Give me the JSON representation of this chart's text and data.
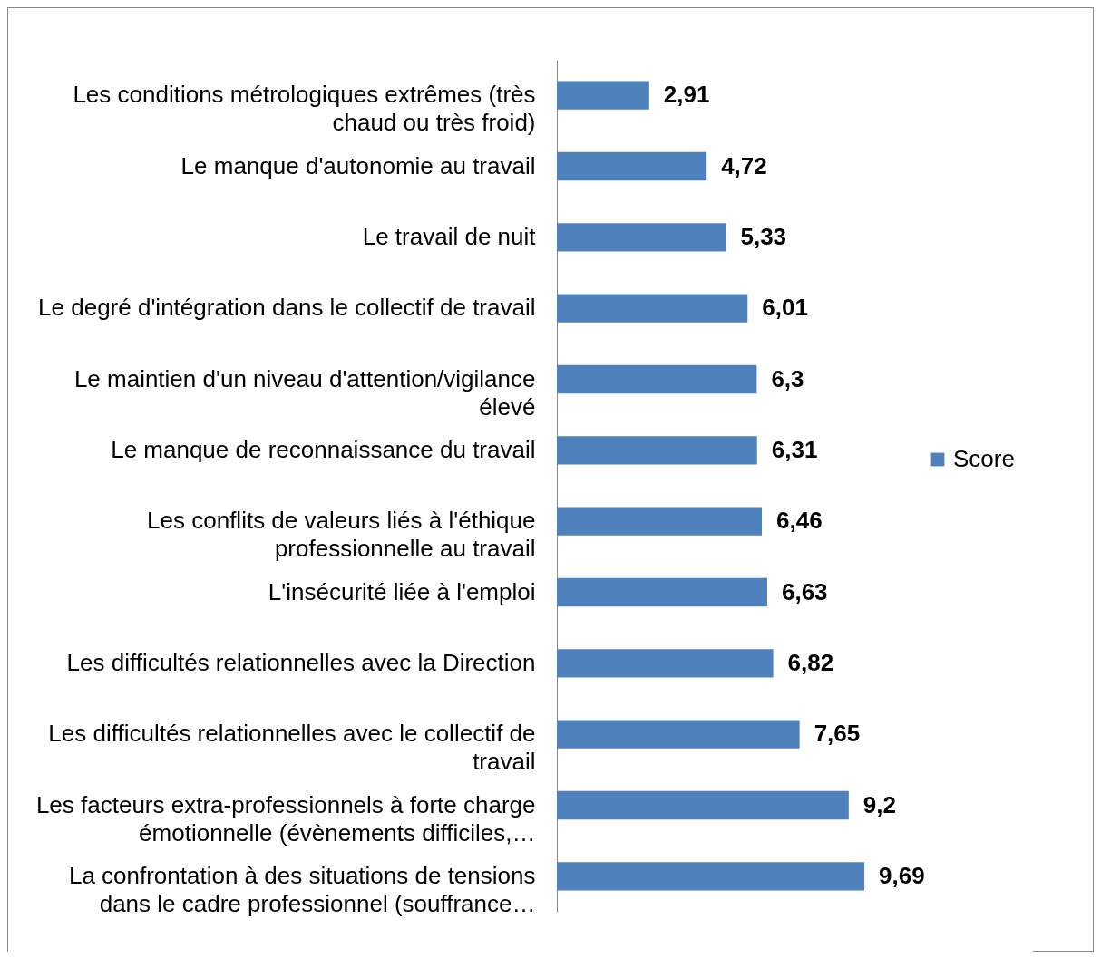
{
  "chart_data": {
    "type": "bar",
    "orientation": "horizontal",
    "categories": [
      "Les conditions métrologiques extrêmes (très chaud ou très froid)",
      "Le manque d'autonomie au travail",
      "Le travail de nuit",
      "Le degré d'intégration dans le collectif de travail",
      "Le maintien d'un niveau d'attention/vigilance élevé",
      "Le manque de reconnaissance du travail",
      "Les conflits de valeurs liés à l'éthique professionnelle au travail",
      "L'insécurité liée à l'emploi",
      "Les difficultés relationnelles avec la Direction",
      "Les difficultés relationnelles avec le collectif de travail",
      "Les facteurs extra-professionnels à forte charge émotionnelle (évènements difficiles,…",
      "La confrontation à des situations de tensions dans le cadre professionnel (souffrance…"
    ],
    "series": [
      {
        "name": "Score",
        "color": "#4f81bd",
        "values": [
          2.91,
          4.72,
          5.33,
          6.01,
          6.3,
          6.31,
          6.46,
          6.63,
          6.82,
          7.65,
          9.2,
          9.69
        ],
        "value_labels": [
          "2,91",
          "4,72",
          "5,33",
          "6,01",
          "6,3",
          "6,31",
          "6,46",
          "6,63",
          "6,82",
          "7,65",
          "9,2",
          "9,69"
        ]
      }
    ],
    "legend": "right"
  }
}
